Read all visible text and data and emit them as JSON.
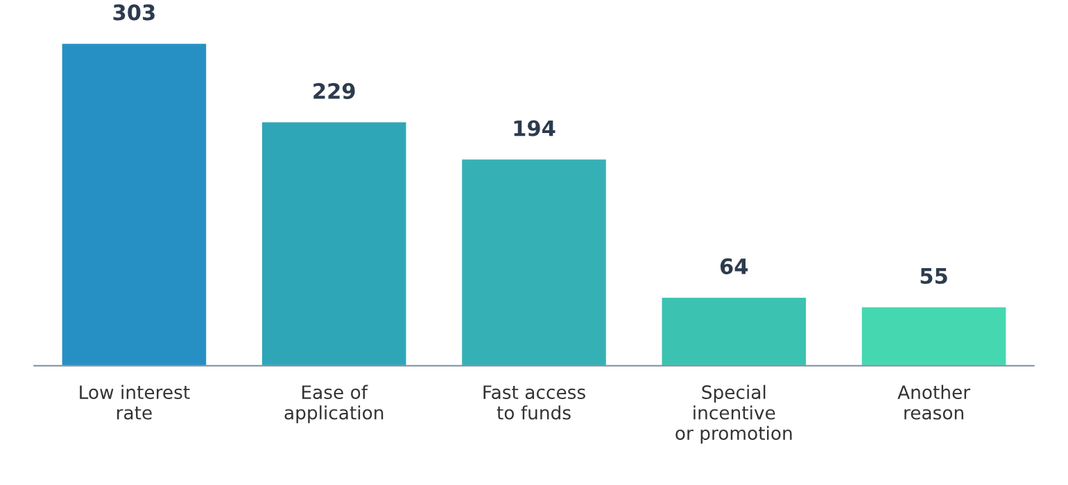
{
  "chart_data": {
    "type": "bar",
    "categories": [
      "Low interest\nrate",
      "Ease of\napplication",
      "Fast access\nto funds",
      "Special\nincentive\nor promotion",
      "Another\nreason"
    ],
    "values": [
      303,
      229,
      194,
      64,
      55
    ],
    "colors": [
      "#2690c4",
      "#2fa6b8",
      "#35b1b6",
      "#3cc2b0",
      "#45d8b0"
    ],
    "data_labels": true,
    "grid": false,
    "legend": false
  }
}
